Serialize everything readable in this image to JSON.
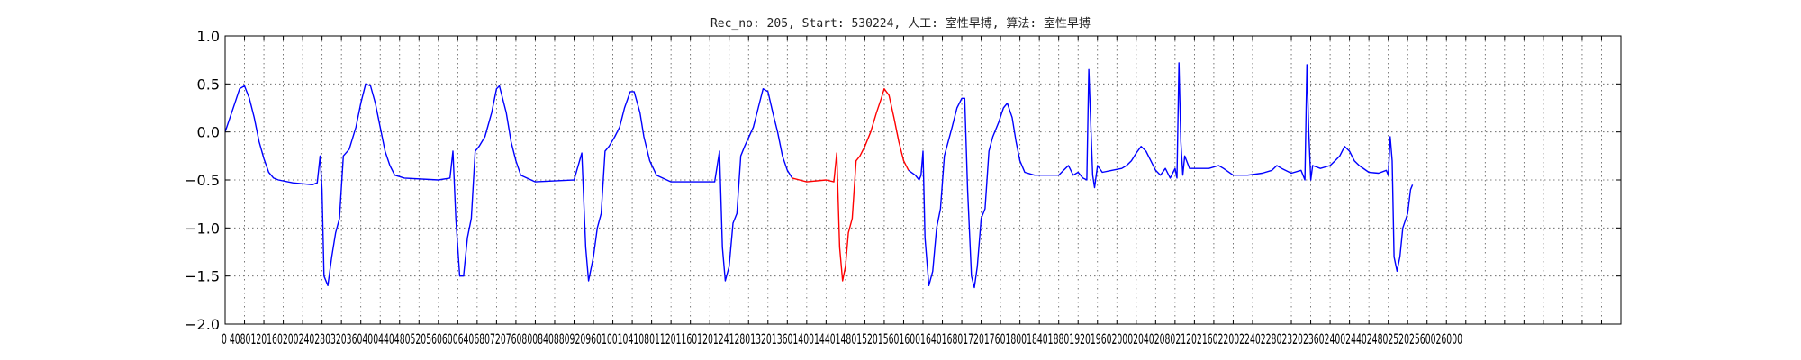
{
  "chart_data": {
    "type": "line",
    "title": "Rec_no: 205, Start: 530224, 人工: 室性早搏, 算法: 室性早搏",
    "xlabel": "",
    "ylabel": "",
    "xlim": [
      0,
      1440
    ],
    "ylim": [
      -2.0,
      1.0
    ],
    "grid": true,
    "y_ticks": [
      1.0,
      0.5,
      0.0,
      -0.5,
      -1.0,
      -1.5,
      -2.0
    ],
    "y_tick_labels": [
      "1.0",
      "0.5",
      "0.0",
      "−0.5",
      "−1.0",
      "−1.5",
      "−2.0"
    ],
    "x_ticks": [
      0,
      20,
      40,
      60,
      80,
      100,
      120,
      140,
      160,
      180,
      200,
      220,
      240,
      260,
      280,
      300,
      320,
      340,
      360,
      380,
      400,
      420,
      440,
      460,
      480,
      500,
      520,
      540,
      560,
      580,
      600,
      620,
      640,
      660,
      680,
      700,
      720,
      740,
      760,
      780,
      800,
      820,
      840,
      860,
      880,
      900,
      920,
      940,
      960,
      980,
      1000,
      1020,
      1040,
      1060,
      1080,
      1100,
      1120,
      1140,
      1160,
      1180,
      1200,
      1220,
      1240,
      1260,
      1280,
      1300,
      1320,
      1340,
      1360,
      1380,
      1400,
      1420,
      1440
    ],
    "x_tick_labels_text": "0 4080120160200240280320360400440480520560600640680720760800840880920960100104108011201160120124128013201360140014401480152015601600164016801720176018001840188019201960200020402080212021602200224022802320236024002440248025202560026000",
    "series": [
      {
        "color": "#0000ff",
        "points": [
          [
            0,
            0
          ],
          [
            5,
            0.15
          ],
          [
            10,
            0.3
          ],
          [
            15,
            0.45
          ],
          [
            20,
            0.48
          ],
          [
            25,
            0.35
          ],
          [
            30,
            0.15
          ],
          [
            35,
            -0.1
          ],
          [
            40,
            -0.28
          ],
          [
            45,
            -0.42
          ],
          [
            50,
            -0.48
          ],
          [
            55,
            -0.5
          ],
          [
            70,
            -0.53
          ],
          [
            90,
            -0.55
          ],
          [
            95,
            -0.53
          ],
          [
            98,
            -0.25
          ],
          [
            100,
            -0.6
          ],
          [
            102,
            -1.5
          ],
          [
            106,
            -1.6
          ],
          [
            110,
            -1.3
          ],
          [
            114,
            -1.05
          ],
          [
            118,
            -0.9
          ],
          [
            122,
            -0.25
          ],
          [
            128,
            -0.18
          ],
          [
            135,
            0.05
          ],
          [
            140,
            0.3
          ],
          [
            145,
            0.5
          ],
          [
            150,
            0.48
          ],
          [
            155,
            0.3
          ],
          [
            160,
            0.05
          ],
          [
            165,
            -0.2
          ],
          [
            170,
            -0.35
          ],
          [
            175,
            -0.45
          ],
          [
            185,
            -0.48
          ],
          [
            220,
            -0.5
          ],
          [
            232,
            -0.48
          ],
          [
            235,
            -0.2
          ],
          [
            238,
            -0.9
          ],
          [
            242,
            -1.5
          ],
          [
            246,
            -1.5
          ],
          [
            250,
            -1.1
          ],
          [
            254,
            -0.9
          ],
          [
            258,
            -0.2
          ],
          [
            262,
            -0.15
          ],
          [
            268,
            -0.05
          ],
          [
            275,
            0.2
          ],
          [
            280,
            0.45
          ],
          [
            283,
            0.48
          ],
          [
            290,
            0.2
          ],
          [
            295,
            -0.1
          ],
          [
            300,
            -0.3
          ],
          [
            305,
            -0.45
          ],
          [
            320,
            -0.52
          ],
          [
            360,
            -0.5
          ],
          [
            368,
            -0.22
          ],
          [
            372,
            -1.2
          ],
          [
            375,
            -1.55
          ],
          [
            380,
            -1.3
          ],
          [
            384,
            -1.0
          ],
          [
            388,
            -0.85
          ],
          [
            392,
            -0.2
          ],
          [
            396,
            -0.15
          ],
          [
            402,
            -0.05
          ],
          [
            407,
            0.05
          ],
          [
            412,
            0.25
          ],
          [
            418,
            0.42
          ],
          [
            422,
            0.42
          ],
          [
            428,
            0.2
          ],
          [
            432,
            -0.05
          ],
          [
            438,
            -0.3
          ],
          [
            445,
            -0.45
          ],
          [
            460,
            -0.52
          ],
          [
            505,
            -0.52
          ],
          [
            510,
            -0.2
          ],
          [
            513,
            -1.2
          ],
          [
            516,
            -1.55
          ],
          [
            520,
            -1.4
          ],
          [
            524,
            -0.95
          ],
          [
            528,
            -0.85
          ],
          [
            532,
            -0.25
          ],
          [
            536,
            -0.15
          ],
          [
            545,
            0.05
          ],
          [
            550,
            0.25
          ],
          [
            555,
            0.45
          ],
          [
            560,
            0.42
          ],
          [
            565,
            0.2
          ],
          [
            570,
            0.0
          ],
          [
            575,
            -0.25
          ],
          [
            580,
            -0.4
          ],
          [
            585,
            -0.48
          ]
        ]
      },
      {
        "color": "#ff0000",
        "points": [
          [
            585,
            -0.48
          ],
          [
            600,
            -0.52
          ],
          [
            620,
            -0.5
          ],
          [
            628,
            -0.52
          ],
          [
            631,
            -0.22
          ],
          [
            634,
            -1.2
          ],
          [
            637,
            -1.55
          ],
          [
            640,
            -1.4
          ],
          [
            643,
            -1.05
          ],
          [
            647,
            -0.9
          ],
          [
            651,
            -0.3
          ],
          [
            655,
            -0.25
          ],
          [
            660,
            -0.15
          ],
          [
            666,
            0.0
          ],
          [
            672,
            0.2
          ],
          [
            677,
            0.35
          ],
          [
            680,
            0.45
          ],
          [
            685,
            0.38
          ],
          [
            690,
            0.15
          ],
          [
            695,
            -0.1
          ],
          [
            700,
            -0.3
          ],
          [
            705,
            -0.4
          ]
        ]
      },
      {
        "color": "#0000ff",
        "points": [
          [
            705,
            -0.4
          ],
          [
            712,
            -0.45
          ],
          [
            716,
            -0.5
          ],
          [
            718,
            -0.45
          ],
          [
            720,
            -0.2
          ],
          [
            722,
            -1.1
          ],
          [
            726,
            -1.6
          ],
          [
            730,
            -1.45
          ],
          [
            734,
            -1.0
          ],
          [
            738,
            -0.8
          ],
          [
            742,
            -0.25
          ],
          [
            746,
            -0.1
          ],
          [
            750,
            0.05
          ],
          [
            755,
            0.25
          ],
          [
            760,
            0.35
          ],
          [
            763,
            0.35
          ],
          [
            766,
            -0.6
          ],
          [
            770,
            -1.5
          ],
          [
            773,
            -1.62
          ],
          [
            776,
            -1.4
          ],
          [
            780,
            -0.9
          ],
          [
            784,
            -0.8
          ],
          [
            788,
            -0.2
          ],
          [
            792,
            -0.05
          ],
          [
            798,
            0.1
          ],
          [
            803,
            0.25
          ],
          [
            807,
            0.3
          ],
          [
            812,
            0.15
          ],
          [
            816,
            -0.1
          ],
          [
            820,
            -0.3
          ],
          [
            825,
            -0.42
          ],
          [
            835,
            -0.45
          ],
          [
            850,
            -0.45
          ],
          [
            860,
            -0.45
          ],
          [
            865,
            -0.4
          ],
          [
            870,
            -0.35
          ],
          [
            875,
            -0.45
          ],
          [
            880,
            -0.42
          ],
          [
            885,
            -0.48
          ],
          [
            889,
            -0.5
          ],
          [
            891,
            0.65
          ],
          [
            893,
            0.1
          ],
          [
            895,
            -0.45
          ],
          [
            897,
            -0.58
          ],
          [
            900,
            -0.35
          ],
          [
            905,
            -0.42
          ],
          [
            915,
            -0.4
          ],
          [
            925,
            -0.38
          ],
          [
            930,
            -0.35
          ],
          [
            935,
            -0.3
          ],
          [
            940,
            -0.22
          ],
          [
            945,
            -0.15
          ],
          [
            950,
            -0.2
          ],
          [
            955,
            -0.3
          ],
          [
            960,
            -0.4
          ],
          [
            965,
            -0.45
          ],
          [
            970,
            -0.38
          ],
          [
            975,
            -0.48
          ],
          [
            980,
            -0.38
          ],
          [
            982,
            -0.48
          ],
          [
            984,
            0.72
          ],
          [
            986,
            -0.1
          ],
          [
            988,
            -0.45
          ],
          [
            990,
            -0.25
          ],
          [
            995,
            -0.38
          ],
          [
            1005,
            -0.38
          ],
          [
            1015,
            -0.38
          ],
          [
            1025,
            -0.35
          ],
          [
            1030,
            -0.38
          ],
          [
            1040,
            -0.45
          ],
          [
            1055,
            -0.45
          ],
          [
            1070,
            -0.43
          ],
          [
            1080,
            -0.4
          ],
          [
            1085,
            -0.35
          ],
          [
            1090,
            -0.38
          ],
          [
            1100,
            -0.43
          ],
          [
            1110,
            -0.4
          ],
          [
            1114,
            -0.5
          ],
          [
            1116,
            0.7
          ],
          [
            1118,
            0.0
          ],
          [
            1120,
            -0.5
          ],
          [
            1122,
            -0.35
          ],
          [
            1130,
            -0.38
          ],
          [
            1140,
            -0.35
          ],
          [
            1145,
            -0.3
          ],
          [
            1150,
            -0.25
          ],
          [
            1155,
            -0.15
          ],
          [
            1160,
            -0.2
          ],
          [
            1165,
            -0.3
          ],
          [
            1170,
            -0.35
          ],
          [
            1180,
            -0.42
          ],
          [
            1190,
            -0.43
          ],
          [
            1198,
            -0.4
          ],
          [
            1200,
            -0.45
          ],
          [
            1202,
            -0.05
          ],
          [
            1204,
            -0.3
          ],
          [
            1206,
            -1.3
          ],
          [
            1209,
            -1.45
          ],
          [
            1212,
            -1.3
          ],
          [
            1215,
            -1.0
          ],
          [
            1220,
            -0.85
          ],
          [
            1223,
            -0.6
          ],
          [
            1225,
            -0.55
          ]
        ]
      }
    ]
  }
}
